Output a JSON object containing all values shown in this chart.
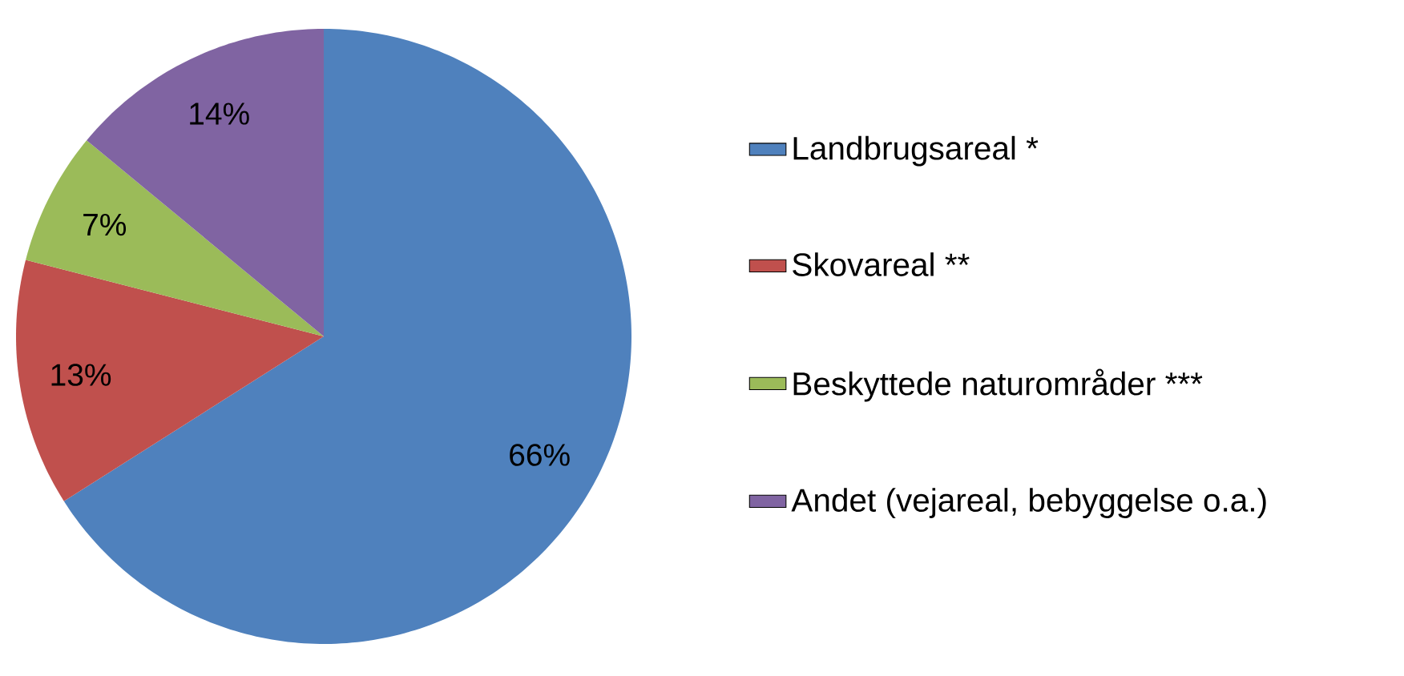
{
  "chart_data": {
    "type": "pie",
    "categories": [
      "Landbrugsareal *",
      "Skovareal **",
      "Beskyttede naturområder ***",
      "Andet (vejareal, bebyggelse o.a.)"
    ],
    "values": [
      66,
      13,
      7,
      14
    ],
    "colors": [
      "#4f81bd",
      "#c0504d",
      "#9bbb59",
      "#8064a2"
    ],
    "value_labels": [
      "66%",
      "13%",
      "7%",
      "14%"
    ],
    "legend": "right"
  }
}
